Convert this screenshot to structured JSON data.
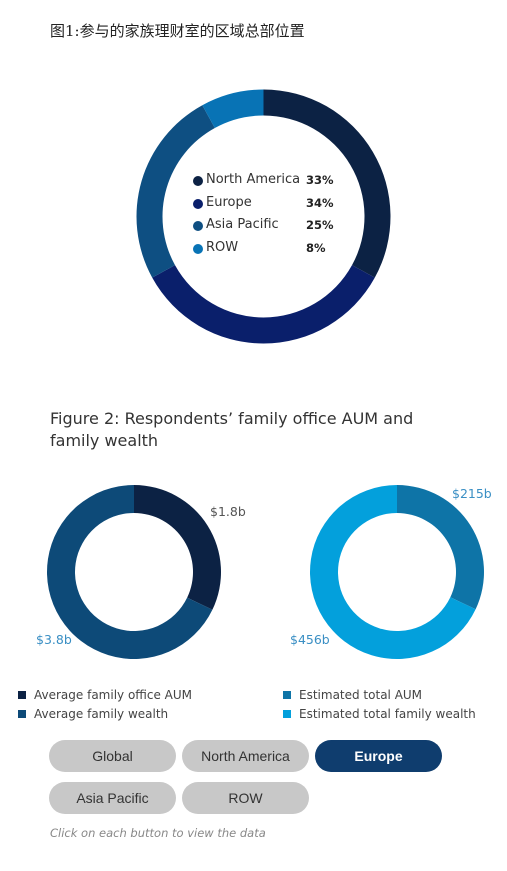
{
  "figure1": {
    "title": "图1:参与的家族理财室的区域总部位置"
  },
  "figure2": {
    "title": "Figure 2: Respondents’ family office AUM and family wealth"
  },
  "chart_data": [
    {
      "type": "pie",
      "title": "图1:参与的家族理财室的区域总部位置",
      "categories": [
        "North America",
        "Europe",
        "Asia Pacific",
        "ROW"
      ],
      "values": [
        33,
        34,
        25,
        8
      ],
      "value_labels": [
        "33%",
        "34%",
        "25%",
        "8%"
      ],
      "colors": [
        "#0c2244",
        "#0a1f6b",
        "#0e4f82",
        "#0873b5"
      ],
      "legend_position": "center"
    },
    {
      "type": "pie",
      "categories": [
        "Average family office AUM",
        "Average family wealth"
      ],
      "values": [
        1.8,
        3.8
      ],
      "value_labels": [
        "$1.8b",
        "$3.8b"
      ],
      "colors": [
        "#0c2244",
        "#0d4a78"
      ],
      "legend_position": "bottom"
    },
    {
      "type": "pie",
      "categories": [
        "Estimated total AUM",
        "Estimated total family wealth"
      ],
      "values": [
        215,
        456
      ],
      "value_labels": [
        "$215b",
        "$456b"
      ],
      "colors": [
        "#0e74a7",
        "#03a0dc"
      ],
      "legend_position": "bottom"
    }
  ],
  "buttons": [
    {
      "label": "Global",
      "active": false
    },
    {
      "label": "North America",
      "active": false
    },
    {
      "label": "Europe",
      "active": true
    },
    {
      "label": "Asia Pacific",
      "active": false
    },
    {
      "label": "ROW",
      "active": false
    }
  ],
  "hint": "Click on each button to view the data"
}
